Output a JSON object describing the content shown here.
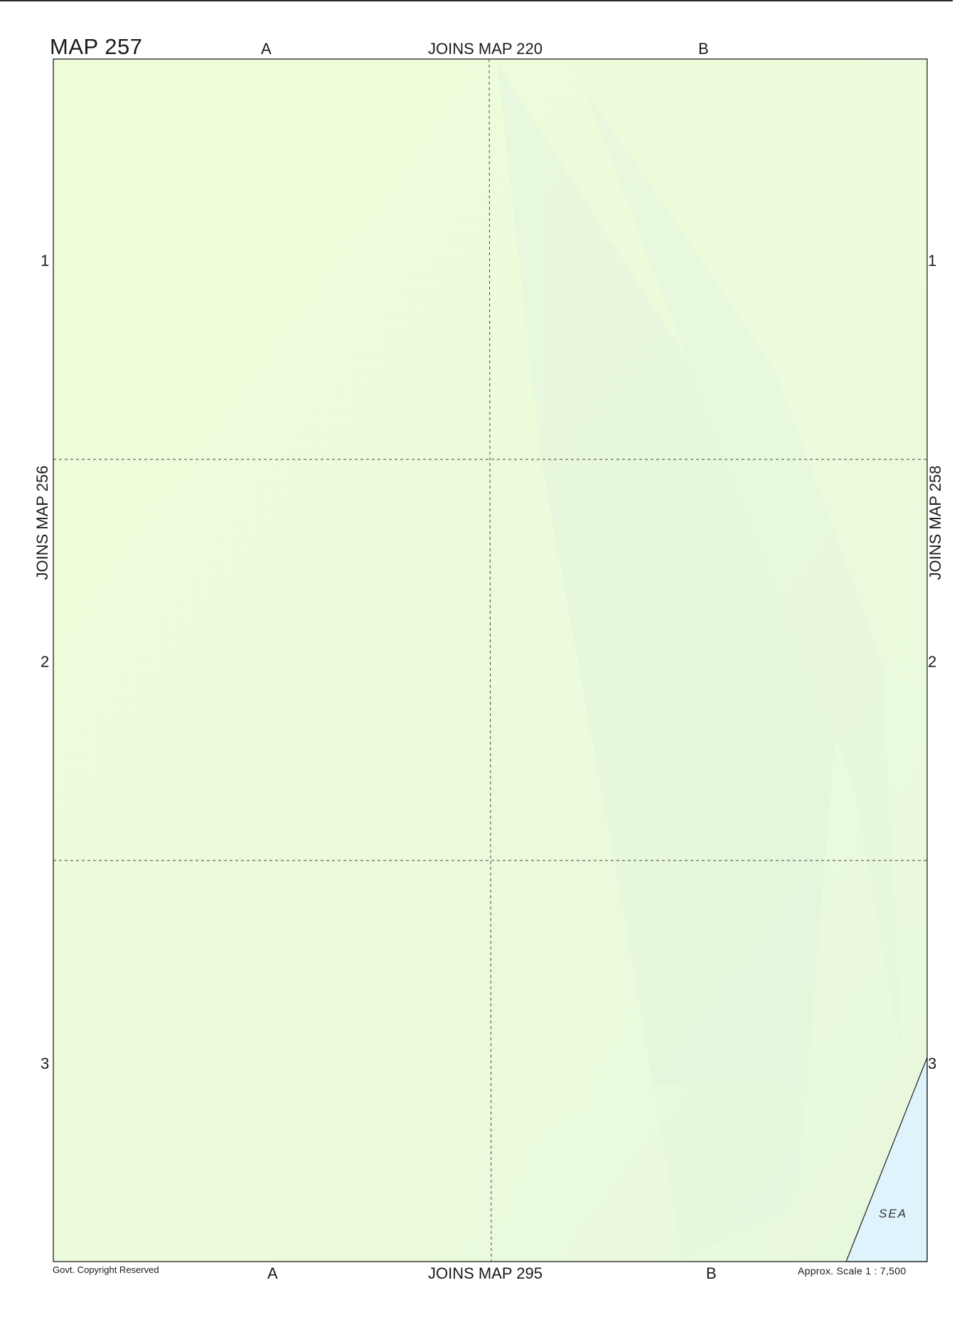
{
  "map": {
    "title": "MAP  257",
    "columns": [
      "A",
      "B"
    ],
    "rows": [
      "1",
      "2",
      "3"
    ],
    "joins": {
      "top": "JOINS  MAP  220",
      "bottom": "JOINS  MAP  295",
      "left": "JOINS  MAP  256",
      "right": "JOINS  MAP  258"
    },
    "area_label": "SEA",
    "copyright": "Govt. Copyright Reserved",
    "scale": "Approx. Scale  1 : 7,500",
    "colors": {
      "land": "#eefcd8",
      "sea": "#def3fb",
      "frame": "#222222",
      "grid": "#444444"
    }
  }
}
